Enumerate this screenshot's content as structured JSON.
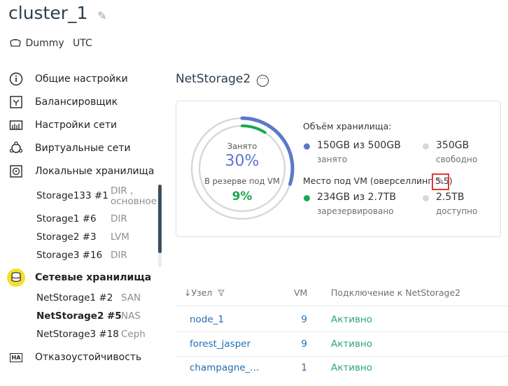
{
  "header": {
    "title": "cluster_1",
    "driver": "Dummy",
    "timezone": "UTC"
  },
  "sidebar": {
    "items": [
      {
        "label": "Общие настройки",
        "icon": "info-icon"
      },
      {
        "label": "Балансировщик",
        "icon": "balancer-icon"
      },
      {
        "label": "Настройки сети",
        "icon": "network-settings-icon"
      },
      {
        "label": "Виртуальные сети",
        "icon": "virtual-network-icon"
      },
      {
        "label": "Локальные хранилища",
        "icon": "local-storage-icon"
      }
    ],
    "local_storages": [
      {
        "name": "Storage133 #1",
        "type": "DIR ,",
        "type2": "основное"
      },
      {
        "name": "Storage1 #6",
        "type": "DIR"
      },
      {
        "name": "Storage2 #3",
        "type": "LVM"
      },
      {
        "name": "Storage3 #16",
        "type": "DIR"
      }
    ],
    "network_storages_label": "Сетевые хранилища",
    "network_storages": [
      {
        "name": "NetStorage1 #2",
        "type": "SAN"
      },
      {
        "name": "NetStorage2 #5",
        "type": "NAS"
      },
      {
        "name": "NetStorage3 #18",
        "type": "Ceph"
      }
    ],
    "ha_label": "Отказоустойчивость",
    "ha_badge": "HA"
  },
  "main": {
    "title": "NetStorage2",
    "more_glyph": "···",
    "gauge": {
      "occupied_label": "Занято",
      "occupied_value": "30%",
      "occupied_fraction": 0.3,
      "reserved_label": "В резерве под VM",
      "reserved_value": "9%",
      "reserved_fraction": 0.09
    },
    "volume_label": "Объём хранилища:",
    "used": {
      "value": "150GB из 500GB",
      "label": "занято"
    },
    "free": {
      "value": "350GB",
      "label": "свободно"
    },
    "vm_space_label": "Место под VM (оверселлинг 5.5)",
    "reserved": {
      "value": "234GB из 2.7TB",
      "label": "зарезервировано"
    },
    "available": {
      "value": "2.5TB",
      "label": "доступно"
    },
    "colors": {
      "used": "#5b79c9",
      "reserved": "#1aa84f",
      "free": "#d6d9dc"
    }
  },
  "table": {
    "columns": {
      "node": "↓Узел",
      "vm": "VM",
      "connection": "Подключение к NetStorage2"
    },
    "rows": [
      {
        "node": "node_1",
        "vm": "9",
        "status": "Активно"
      },
      {
        "node": "forest_jasper",
        "vm": "9",
        "status": "Активно"
      },
      {
        "node": "champagne_...",
        "vm": "1",
        "status": "Активно"
      }
    ]
  }
}
